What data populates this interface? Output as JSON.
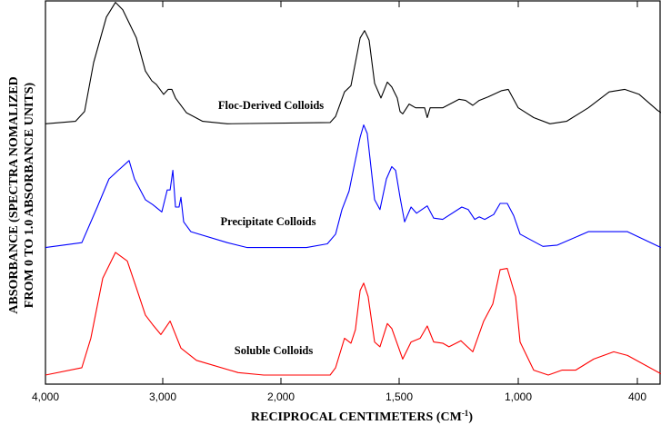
{
  "chart_data": {
    "type": "line",
    "title": "",
    "xlabel": "RECIPROCAL CENTIMETERS (CM",
    "xlabel_sup": "-1",
    "xlabel_close": ")",
    "ylabel_line1": "ABSORBANCE (SPECTRA NOMALIZED",
    "ylabel_line2": "FROM 0 TO 1.0 ABSORBANCE UNITS)",
    "x_ticks": [
      4000,
      3000,
      2000,
      1500,
      1000,
      400
    ],
    "x_tick_labels": [
      "4,000",
      "3,000",
      "2,000",
      "1,500",
      "1,000",
      "400"
    ],
    "xlim": [
      4000,
      281
    ],
    "x_axis_reversed": true,
    "grid": false,
    "series": [
      {
        "name": "Floc-Derived Colloids",
        "color": "#000000",
        "offset": 2.05,
        "x": [
          4000,
          3744,
          3667,
          3589,
          3481,
          3403,
          3341,
          3225,
          3148,
          3093,
          3054,
          2992,
          2954,
          2923,
          2892,
          2800,
          2662,
          2454,
          1792,
          1769,
          1731,
          1704,
          1665,
          1646,
          1627,
          1604,
          1577,
          1550,
          1531,
          1508,
          1496,
          1485,
          1458,
          1431,
          1393,
          1382,
          1370,
          1317,
          1248,
          1221,
          1191,
          1164,
          1126,
          1069,
          1042,
          1000,
          922,
          840,
          757,
          647,
          542,
          464,
          391,
          299,
          281
        ],
        "y": [
          0,
          0.02,
          0.1,
          0.5,
          0.87,
          0.99,
          0.93,
          0.7,
          0.43,
          0.35,
          0.32,
          0.24,
          0.28,
          0.28,
          0.21,
          0.09,
          0.02,
          0,
          0.01,
          0.06,
          0.26,
          0.31,
          0.7,
          0.76,
          0.68,
          0.33,
          0.21,
          0.34,
          0.3,
          0.21,
          0.1,
          0.08,
          0.16,
          0.13,
          0.13,
          0.05,
          0.13,
          0.13,
          0.2,
          0.19,
          0.15,
          0.19,
          0.22,
          0.27,
          0.28,
          0.13,
          0.05,
          0,
          0.02,
          0.13,
          0.26,
          0.28,
          0.24,
          0.11,
          0.09
        ]
      },
      {
        "name": "Precipitate Colloids",
        "color": "#0000ff",
        "offset": 1.04,
        "x": [
          4000,
          3690,
          3558,
          3458,
          3380,
          3287,
          3241,
          3148,
          3085,
          3008,
          2962,
          2938,
          2915,
          2892,
          2862,
          2846,
          2823,
          2762,
          2454,
          2285,
          1892,
          1804,
          1769,
          1742,
          1712,
          1692,
          1665,
          1650,
          1635,
          1619,
          1604,
          1581,
          1554,
          1531,
          1515,
          1496,
          1477,
          1450,
          1427,
          1382,
          1355,
          1317,
          1237,
          1210,
          1183,
          1164,
          1141,
          1103,
          1076,
          1046,
          1019,
          991,
          876,
          803,
          647,
          510,
          450,
          281
        ],
        "y": [
          0,
          0.04,
          0.33,
          0.56,
          0.63,
          0.71,
          0.56,
          0.39,
          0.35,
          0.29,
          0.47,
          0.47,
          0.63,
          0.33,
          0.33,
          0.41,
          0.21,
          0.13,
          0.04,
          0,
          0,
          0.03,
          0.11,
          0.31,
          0.46,
          0.65,
          0.9,
          1.0,
          0.93,
          0.65,
          0.39,
          0.31,
          0.56,
          0.66,
          0.63,
          0.41,
          0.21,
          0.33,
          0.28,
          0.34,
          0.24,
          0.23,
          0.33,
          0.31,
          0.23,
          0.25,
          0.23,
          0.27,
          0.36,
          0.36,
          0.26,
          0.11,
          0.01,
          0.02,
          0.13,
          0.13,
          0.13,
          0
        ]
      },
      {
        "name": "Soluble Colloids",
        "color": "#ff0000",
        "offset": 0,
        "x": [
          4000,
          3690,
          3613,
          3512,
          3403,
          3302,
          3225,
          3148,
          3085,
          3016,
          2938,
          2846,
          2715,
          2362,
          2146,
          1792,
          1769,
          1731,
          1704,
          1685,
          1665,
          1650,
          1631,
          1604,
          1581,
          1550,
          1531,
          1485,
          1450,
          1412,
          1382,
          1355,
          1317,
          1291,
          1241,
          1191,
          1145,
          1107,
          1076,
          1046,
          1011,
          991,
          922,
          849,
          780,
          711,
          620,
          519,
          450,
          281
        ],
        "y": [
          0,
          0.06,
          0.3,
          0.79,
          1.0,
          0.93,
          0.71,
          0.49,
          0.41,
          0.33,
          0.44,
          0.22,
          0.12,
          0.02,
          0,
          0,
          0.06,
          0.3,
          0.26,
          0.37,
          0.69,
          0.75,
          0.64,
          0.27,
          0.23,
          0.42,
          0.38,
          0.13,
          0.27,
          0.3,
          0.4,
          0.27,
          0.26,
          0.23,
          0.28,
          0.19,
          0.44,
          0.58,
          0.86,
          0.87,
          0.64,
          0.27,
          0.04,
          0,
          0.04,
          0.04,
          0.13,
          0.19,
          0.16,
          0.01
        ]
      }
    ],
    "annotations": [
      "Floc-Derived Colloids",
      "Precipitate Colloids",
      "Soluble Colloids"
    ]
  }
}
